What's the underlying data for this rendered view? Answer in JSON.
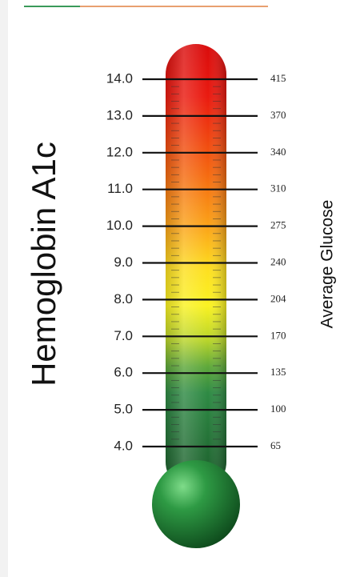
{
  "title": "Hemoglobin A1c",
  "side_label": "Average Glucose",
  "levels": [
    {
      "a1c": "14.0",
      "glucose": "415"
    },
    {
      "a1c": "13.0",
      "glucose": "370"
    },
    {
      "a1c": "12.0",
      "glucose": "340"
    },
    {
      "a1c": "11.0",
      "glucose": "310"
    },
    {
      "a1c": "10.0",
      "glucose": "275"
    },
    {
      "a1c": "9.0",
      "glucose": "240"
    },
    {
      "a1c": "8.0",
      "glucose": "204"
    },
    {
      "a1c": "7.0",
      "glucose": "170"
    },
    {
      "a1c": "6.0",
      "glucose": "135"
    },
    {
      "a1c": "5.0",
      "glucose": "100"
    },
    {
      "a1c": "4.0",
      "glucose": "65"
    }
  ]
}
